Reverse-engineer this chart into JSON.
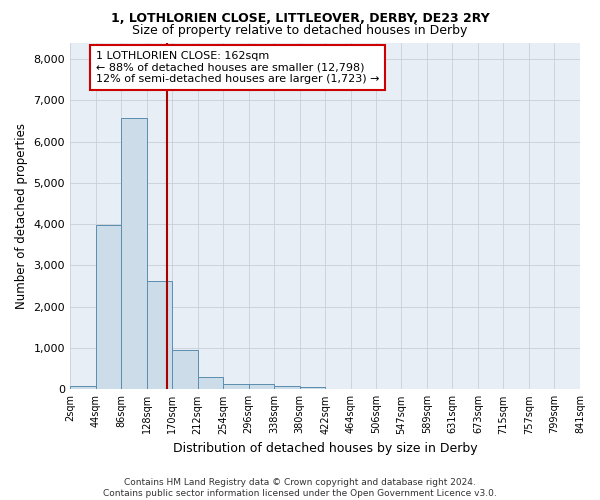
{
  "title1": "1, LOTHLORIEN CLOSE, LITTLEOVER, DERBY, DE23 2RY",
  "title2": "Size of property relative to detached houses in Derby",
  "xlabel": "Distribution of detached houses by size in Derby",
  "ylabel": "Number of detached properties",
  "bar_color": "#ccdce8",
  "bar_edge_color": "#5a8db0",
  "background_color": "#e8eef5",
  "grid_color": "#c8d0d8",
  "annotation_line_color": "#aa0000",
  "annotation_box_color": "#cc0000",
  "annotation_text": "1 LOTHLORIEN CLOSE: 162sqm\n← 88% of detached houses are smaller (12,798)\n12% of semi-detached houses are larger (1,723) →",
  "property_size": 162,
  "footer": "Contains HM Land Registry data © Crown copyright and database right 2024.\nContains public sector information licensed under the Open Government Licence v3.0.",
  "bin_edges": [
    2,
    44,
    86,
    128,
    170,
    212,
    254,
    296,
    338,
    380,
    422,
    464,
    506,
    547,
    589,
    631,
    673,
    715,
    757,
    799,
    841
  ],
  "counts": [
    80,
    3980,
    6560,
    2620,
    950,
    310,
    130,
    120,
    90,
    60,
    0,
    0,
    0,
    0,
    0,
    0,
    0,
    0,
    0,
    0
  ],
  "ylim": [
    0,
    8400
  ],
  "yticks": [
    0,
    1000,
    2000,
    3000,
    4000,
    5000,
    6000,
    7000,
    8000
  ]
}
